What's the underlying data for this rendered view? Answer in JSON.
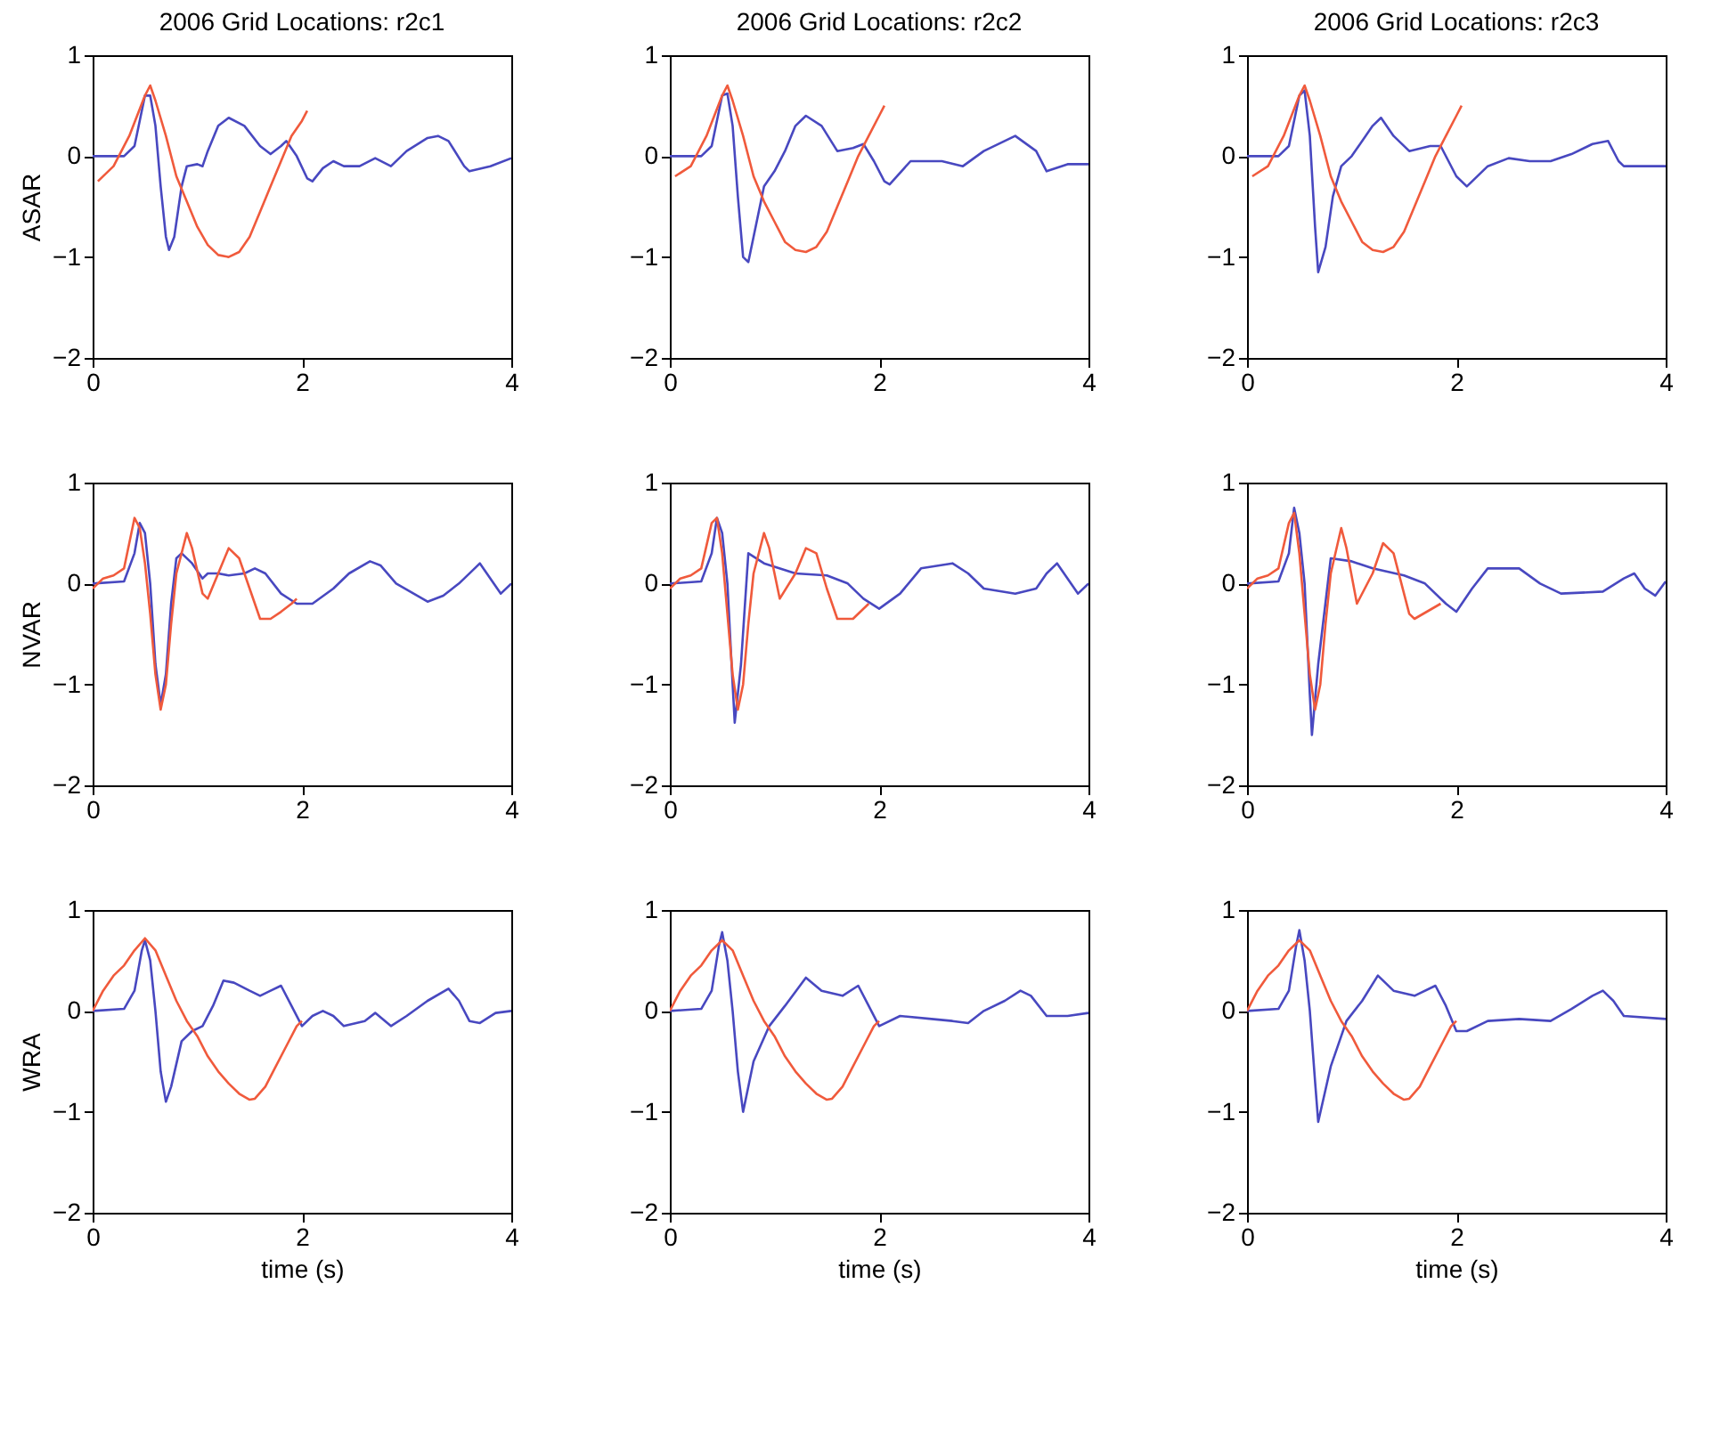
{
  "chart_data": [
    {
      "type": "line",
      "title": "2006 Grid Locations: r2c1",
      "ylabel": "ASAR",
      "xlim": [
        0,
        4
      ],
      "ylim": [
        -2,
        1
      ],
      "xticks": [
        0,
        2,
        4
      ],
      "yticks": [
        -2,
        -1,
        0,
        1
      ],
      "tick_labels": true,
      "series": [
        {
          "color": "#4848c0",
          "x": [
            0,
            0.3,
            0.4,
            0.5,
            0.55,
            0.6,
            0.65,
            0.7,
            0.73,
            0.78,
            0.85,
            0.9,
            1.0,
            1.05,
            1.1,
            1.2,
            1.3,
            1.45,
            1.6,
            1.7,
            1.8,
            1.85,
            1.95,
            2.05,
            2.1,
            2.2,
            2.3,
            2.4,
            2.55,
            2.7,
            2.85,
            3.0,
            3.2,
            3.3,
            3.4,
            3.55,
            3.6,
            3.8,
            4.0
          ],
          "values": [
            0,
            0,
            0.1,
            0.6,
            0.6,
            0.3,
            -0.3,
            -0.8,
            -0.93,
            -0.8,
            -0.3,
            -0.1,
            -0.08,
            -0.1,
            0.05,
            0.3,
            0.38,
            0.3,
            0.1,
            0.02,
            0.1,
            0.15,
            0,
            -0.22,
            -0.25,
            -0.12,
            -0.05,
            -0.1,
            -0.1,
            -0.02,
            -0.1,
            0.05,
            0.18,
            0.2,
            0.15,
            -0.1,
            -0.15,
            -0.1,
            -0.02
          ]
        },
        {
          "color": "#f05a3c",
          "x": [
            0.05,
            0.2,
            0.35,
            0.5,
            0.55,
            0.6,
            0.7,
            0.8,
            0.9,
            1.0,
            1.1,
            1.2,
            1.3,
            1.4,
            1.5,
            1.6,
            1.7,
            1.8,
            1.9,
            2.0,
            2.05
          ],
          "values": [
            -0.25,
            -0.1,
            0.2,
            0.6,
            0.7,
            0.55,
            0.2,
            -0.2,
            -0.45,
            -0.7,
            -0.88,
            -0.98,
            -1.0,
            -0.95,
            -0.8,
            -0.55,
            -0.3,
            -0.05,
            0.2,
            0.35,
            0.45
          ]
        }
      ]
    },
    {
      "type": "line",
      "title": "2006 Grid Locations: r2c2",
      "xlim": [
        0,
        4
      ],
      "ylim": [
        -2,
        1
      ],
      "xticks": [
        0,
        2,
        4
      ],
      "yticks": [
        -2,
        -1,
        0,
        1
      ],
      "tick_labels": true,
      "series": [
        {
          "color": "#4848c0",
          "x": [
            0,
            0.3,
            0.4,
            0.5,
            0.55,
            0.6,
            0.65,
            0.7,
            0.75,
            0.8,
            0.9,
            1.0,
            1.1,
            1.2,
            1.3,
            1.45,
            1.6,
            1.75,
            1.85,
            1.95,
            2.05,
            2.1,
            2.3,
            2.6,
            2.8,
            3.0,
            3.3,
            3.5,
            3.6,
            3.8,
            4.0
          ],
          "values": [
            0,
            0,
            0.1,
            0.6,
            0.62,
            0.3,
            -0.4,
            -1.0,
            -1.05,
            -0.8,
            -0.3,
            -0.15,
            0.05,
            0.3,
            0.4,
            0.3,
            0.05,
            0.08,
            0.12,
            -0.05,
            -0.25,
            -0.28,
            -0.05,
            -0.05,
            -0.1,
            0.05,
            0.2,
            0.05,
            -0.15,
            -0.08,
            -0.08
          ]
        },
        {
          "color": "#f05a3c",
          "x": [
            0.05,
            0.2,
            0.35,
            0.5,
            0.55,
            0.6,
            0.7,
            0.8,
            0.9,
            1.0,
            1.1,
            1.2,
            1.3,
            1.4,
            1.5,
            1.6,
            1.7,
            1.8,
            1.9,
            2.0,
            2.05
          ],
          "values": [
            -0.2,
            -0.1,
            0.2,
            0.6,
            0.7,
            0.55,
            0.2,
            -0.2,
            -0.45,
            -0.65,
            -0.85,
            -0.93,
            -0.95,
            -0.9,
            -0.75,
            -0.5,
            -0.25,
            0,
            0.2,
            0.4,
            0.5
          ]
        }
      ]
    },
    {
      "type": "line",
      "title": "2006 Grid Locations: r2c3",
      "xlim": [
        0,
        4
      ],
      "ylim": [
        -2,
        1
      ],
      "xticks": [
        0,
        2,
        4
      ],
      "yticks": [
        -2,
        -1,
        0,
        1
      ],
      "tick_labels": true,
      "series": [
        {
          "color": "#4848c0",
          "x": [
            0,
            0.3,
            0.4,
            0.5,
            0.55,
            0.6,
            0.65,
            0.68,
            0.75,
            0.82,
            0.9,
            1.0,
            1.2,
            1.28,
            1.4,
            1.55,
            1.75,
            1.85,
            2.0,
            2.1,
            2.3,
            2.5,
            2.7,
            2.9,
            3.1,
            3.3,
            3.45,
            3.55,
            3.6,
            4.0
          ],
          "values": [
            0,
            0,
            0.1,
            0.6,
            0.65,
            0.2,
            -0.7,
            -1.15,
            -0.9,
            -0.4,
            -0.1,
            0,
            0.3,
            0.38,
            0.2,
            0.05,
            0.1,
            0.1,
            -0.2,
            -0.3,
            -0.1,
            -0.02,
            -0.05,
            -0.05,
            0.02,
            0.12,
            0.15,
            -0.05,
            -0.1,
            -0.1
          ]
        },
        {
          "color": "#f05a3c",
          "x": [
            0.05,
            0.2,
            0.35,
            0.5,
            0.55,
            0.6,
            0.7,
            0.8,
            0.9,
            1.0,
            1.1,
            1.2,
            1.3,
            1.4,
            1.5,
            1.6,
            1.7,
            1.8,
            1.9,
            2.0,
            2.05
          ],
          "values": [
            -0.2,
            -0.1,
            0.2,
            0.6,
            0.7,
            0.55,
            0.2,
            -0.2,
            -0.45,
            -0.65,
            -0.85,
            -0.93,
            -0.95,
            -0.9,
            -0.75,
            -0.5,
            -0.25,
            0,
            0.2,
            0.4,
            0.5
          ]
        }
      ]
    },
    {
      "type": "line",
      "ylabel": "NVAR",
      "xlim": [
        0,
        4
      ],
      "ylim": [
        -2,
        1
      ],
      "xticks": [
        0,
        2,
        4
      ],
      "yticks": [
        -2,
        -1,
        0,
        1
      ],
      "tick_labels": true,
      "series": [
        {
          "color": "#4848c0",
          "x": [
            0,
            0.3,
            0.4,
            0.45,
            0.5,
            0.55,
            0.6,
            0.65,
            0.7,
            0.75,
            0.8,
            0.85,
            0.95,
            1.05,
            1.1,
            1.2,
            1.3,
            1.45,
            1.55,
            1.65,
            1.8,
            1.95,
            2.1,
            2.3,
            2.45,
            2.65,
            2.75,
            2.9,
            3.1,
            3.2,
            3.35,
            3.5,
            3.65,
            3.7,
            3.8,
            3.9,
            4.0
          ],
          "values": [
            0,
            0.02,
            0.3,
            0.6,
            0.5,
            0,
            -0.8,
            -1.2,
            -0.9,
            -0.2,
            0.25,
            0.3,
            0.2,
            0.05,
            0.1,
            0.1,
            0.08,
            0.1,
            0.15,
            0.1,
            -0.1,
            -0.2,
            -0.2,
            -0.05,
            0.1,
            0.22,
            0.18,
            0,
            -0.12,
            -0.18,
            -0.12,
            0,
            0.15,
            0.2,
            0.05,
            -0.1,
            0
          ]
        },
        {
          "color": "#f05a3c",
          "x": [
            0,
            0.1,
            0.2,
            0.3,
            0.4,
            0.45,
            0.5,
            0.55,
            0.6,
            0.65,
            0.7,
            0.75,
            0.8,
            0.9,
            0.95,
            1.05,
            1.1,
            1.2,
            1.3,
            1.4,
            1.5,
            1.6,
            1.7,
            1.8,
            1.9,
            1.95
          ],
          "values": [
            -0.05,
            0.05,
            0.08,
            0.15,
            0.65,
            0.55,
            0.2,
            -0.3,
            -0.9,
            -1.25,
            -1.0,
            -0.4,
            0.1,
            0.5,
            0.35,
            -0.1,
            -0.15,
            0.1,
            0.35,
            0.25,
            -0.05,
            -0.35,
            -0.35,
            -0.28,
            -0.2,
            -0.15
          ]
        }
      ]
    },
    {
      "type": "line",
      "xlim": [
        0,
        4
      ],
      "ylim": [
        -2,
        1
      ],
      "xticks": [
        0,
        2,
        4
      ],
      "yticks": [
        -2,
        -1,
        0,
        1
      ],
      "tick_labels": true,
      "series": [
        {
          "color": "#4848c0",
          "x": [
            0,
            0.3,
            0.4,
            0.45,
            0.5,
            0.55,
            0.6,
            0.62,
            0.68,
            0.75,
            0.9,
            1.2,
            1.5,
            1.7,
            1.85,
            2.0,
            2.2,
            2.4,
            2.7,
            2.85,
            3.0,
            3.3,
            3.5,
            3.6,
            3.7,
            3.8,
            3.9,
            4.0
          ],
          "values": [
            0,
            0.02,
            0.3,
            0.65,
            0.5,
            0,
            -1.0,
            -1.38,
            -0.8,
            0.3,
            0.2,
            0.1,
            0.08,
            0,
            -0.15,
            -0.25,
            -0.1,
            0.15,
            0.2,
            0.1,
            -0.05,
            -0.1,
            -0.05,
            0.1,
            0.2,
            0.05,
            -0.1,
            0
          ]
        },
        {
          "color": "#f05a3c",
          "x": [
            0,
            0.1,
            0.2,
            0.3,
            0.4,
            0.45,
            0.5,
            0.55,
            0.6,
            0.65,
            0.7,
            0.75,
            0.8,
            0.9,
            0.95,
            1.05,
            1.2,
            1.3,
            1.4,
            1.5,
            1.6,
            1.75,
            1.9
          ],
          "values": [
            -0.05,
            0.05,
            0.08,
            0.15,
            0.6,
            0.65,
            0.3,
            -0.3,
            -0.9,
            -1.25,
            -1.0,
            -0.4,
            0.1,
            0.5,
            0.35,
            -0.15,
            0.1,
            0.35,
            0.3,
            -0.05,
            -0.35,
            -0.35,
            -0.2
          ]
        }
      ]
    },
    {
      "type": "line",
      "xlim": [
        0,
        4
      ],
      "ylim": [
        -2,
        1
      ],
      "xticks": [
        0,
        2,
        4
      ],
      "yticks": [
        -2,
        -1,
        0,
        1
      ],
      "tick_labels": true,
      "series": [
        {
          "color": "#4848c0",
          "x": [
            0,
            0.3,
            0.4,
            0.45,
            0.5,
            0.55,
            0.6,
            0.62,
            0.68,
            0.8,
            1.0,
            1.2,
            1.5,
            1.7,
            1.9,
            2.0,
            2.15,
            2.3,
            2.6,
            2.8,
            3.0,
            3.4,
            3.6,
            3.7,
            3.8,
            3.9,
            4.0
          ],
          "values": [
            0,
            0.02,
            0.3,
            0.75,
            0.5,
            0,
            -1.1,
            -1.5,
            -0.8,
            0.25,
            0.22,
            0.15,
            0.08,
            0,
            -0.2,
            -0.28,
            -0.05,
            0.15,
            0.15,
            0,
            -0.1,
            -0.08,
            0.05,
            0.1,
            -0.05,
            -0.12,
            0.02
          ]
        },
        {
          "color": "#f05a3c",
          "x": [
            0,
            0.1,
            0.2,
            0.3,
            0.4,
            0.45,
            0.5,
            0.55,
            0.6,
            0.65,
            0.7,
            0.75,
            0.8,
            0.9,
            0.95,
            1.05,
            1.2,
            1.3,
            1.4,
            1.55,
            1.6,
            1.85
          ],
          "values": [
            -0.05,
            0.05,
            0.08,
            0.15,
            0.6,
            0.7,
            0.3,
            -0.3,
            -0.9,
            -1.25,
            -1.0,
            -0.4,
            0.1,
            0.55,
            0.35,
            -0.2,
            0.1,
            0.4,
            0.3,
            -0.3,
            -0.35,
            -0.2
          ]
        }
      ]
    },
    {
      "type": "line",
      "ylabel": "WRA",
      "xlabel": "time (s)",
      "xlim": [
        0,
        4
      ],
      "ylim": [
        -2,
        1
      ],
      "xticks": [
        0,
        2,
        4
      ],
      "yticks": [
        -2,
        -1,
        0,
        1
      ],
      "tick_labels": true,
      "series": [
        {
          "color": "#4848c0",
          "x": [
            0,
            0.3,
            0.4,
            0.47,
            0.5,
            0.55,
            0.6,
            0.65,
            0.7,
            0.75,
            0.85,
            0.95,
            1.05,
            1.15,
            1.25,
            1.35,
            1.5,
            1.6,
            1.7,
            1.8,
            1.9,
            2.0,
            2.1,
            2.2,
            2.3,
            2.4,
            2.6,
            2.7,
            2.85,
            3.0,
            3.2,
            3.4,
            3.5,
            3.6,
            3.7,
            3.85,
            4.0
          ],
          "values": [
            0,
            0.02,
            0.2,
            0.6,
            0.7,
            0.5,
            0,
            -0.6,
            -0.9,
            -0.75,
            -0.3,
            -0.2,
            -0.15,
            0.05,
            0.3,
            0.28,
            0.2,
            0.15,
            0.2,
            0.25,
            0.05,
            -0.15,
            -0.05,
            0,
            -0.05,
            -0.15,
            -0.1,
            -0.02,
            -0.15,
            -0.05,
            0.1,
            0.22,
            0.1,
            -0.1,
            -0.12,
            -0.02,
            0
          ]
        },
        {
          "color": "#f05a3c",
          "x": [
            0,
            0.1,
            0.2,
            0.3,
            0.4,
            0.5,
            0.6,
            0.7,
            0.8,
            0.9,
            1.0,
            1.1,
            1.2,
            1.3,
            1.4,
            1.5,
            1.55,
            1.65,
            1.75,
            1.85,
            1.95,
            2.0
          ],
          "values": [
            0,
            0.2,
            0.35,
            0.45,
            0.6,
            0.72,
            0.6,
            0.35,
            0.1,
            -0.1,
            -0.25,
            -0.45,
            -0.6,
            -0.72,
            -0.82,
            -0.88,
            -0.87,
            -0.75,
            -0.55,
            -0.35,
            -0.15,
            -0.1
          ]
        }
      ]
    },
    {
      "type": "line",
      "xlabel": "time (s)",
      "xlim": [
        0,
        4
      ],
      "ylim": [
        -2,
        1
      ],
      "xticks": [
        0,
        2,
        4
      ],
      "yticks": [
        -2,
        -1,
        0,
        1
      ],
      "tick_labels": true,
      "series": [
        {
          "color": "#4848c0",
          "x": [
            0,
            0.3,
            0.4,
            0.47,
            0.5,
            0.55,
            0.6,
            0.65,
            0.7,
            0.8,
            0.95,
            1.1,
            1.3,
            1.45,
            1.65,
            1.8,
            1.9,
            2.0,
            2.2,
            2.5,
            2.7,
            2.85,
            3.0,
            3.2,
            3.35,
            3.45,
            3.6,
            3.8,
            4.0
          ],
          "values": [
            0,
            0.02,
            0.2,
            0.65,
            0.78,
            0.5,
            0,
            -0.6,
            -1.0,
            -0.5,
            -0.15,
            0.05,
            0.33,
            0.2,
            0.15,
            0.25,
            0.05,
            -0.15,
            -0.05,
            -0.08,
            -0.1,
            -0.12,
            0,
            0.1,
            0.2,
            0.15,
            -0.05,
            -0.05,
            -0.02
          ]
        },
        {
          "color": "#f05a3c",
          "x": [
            0,
            0.1,
            0.2,
            0.3,
            0.4,
            0.5,
            0.6,
            0.7,
            0.8,
            0.9,
            1.0,
            1.1,
            1.2,
            1.3,
            1.4,
            1.5,
            1.55,
            1.65,
            1.75,
            1.85,
            1.95,
            2.0
          ],
          "values": [
            0,
            0.2,
            0.35,
            0.45,
            0.6,
            0.7,
            0.6,
            0.35,
            0.1,
            -0.1,
            -0.25,
            -0.45,
            -0.6,
            -0.72,
            -0.82,
            -0.88,
            -0.87,
            -0.75,
            -0.55,
            -0.35,
            -0.15,
            -0.1
          ]
        }
      ]
    },
    {
      "type": "line",
      "xlabel": "time (s)",
      "xlim": [
        0,
        4
      ],
      "ylim": [
        -2,
        1
      ],
      "xticks": [
        0,
        2,
        4
      ],
      "yticks": [
        -2,
        -1,
        0,
        1
      ],
      "tick_labels": true,
      "series": [
        {
          "color": "#4848c0",
          "x": [
            0,
            0.3,
            0.4,
            0.47,
            0.5,
            0.55,
            0.6,
            0.65,
            0.68,
            0.8,
            0.95,
            1.1,
            1.25,
            1.4,
            1.6,
            1.8,
            1.9,
            2.0,
            2.1,
            2.3,
            2.6,
            2.9,
            3.1,
            3.3,
            3.4,
            3.5,
            3.6,
            4.0
          ],
          "values": [
            0,
            0.02,
            0.2,
            0.65,
            0.8,
            0.5,
            0,
            -0.7,
            -1.1,
            -0.55,
            -0.1,
            0.1,
            0.35,
            0.2,
            0.15,
            0.25,
            0.05,
            -0.2,
            -0.2,
            -0.1,
            -0.08,
            -0.1,
            0.02,
            0.15,
            0.2,
            0.1,
            -0.05,
            -0.08
          ]
        },
        {
          "color": "#f05a3c",
          "x": [
            0,
            0.1,
            0.2,
            0.3,
            0.4,
            0.5,
            0.6,
            0.7,
            0.8,
            0.9,
            1.0,
            1.1,
            1.2,
            1.3,
            1.4,
            1.5,
            1.55,
            1.65,
            1.75,
            1.85,
            1.95,
            2.0
          ],
          "values": [
            0,
            0.2,
            0.35,
            0.45,
            0.6,
            0.7,
            0.6,
            0.35,
            0.1,
            -0.1,
            -0.25,
            -0.45,
            -0.6,
            -0.72,
            -0.82,
            -0.88,
            -0.87,
            -0.75,
            -0.55,
            -0.35,
            -0.15,
            -0.1
          ]
        }
      ]
    }
  ]
}
